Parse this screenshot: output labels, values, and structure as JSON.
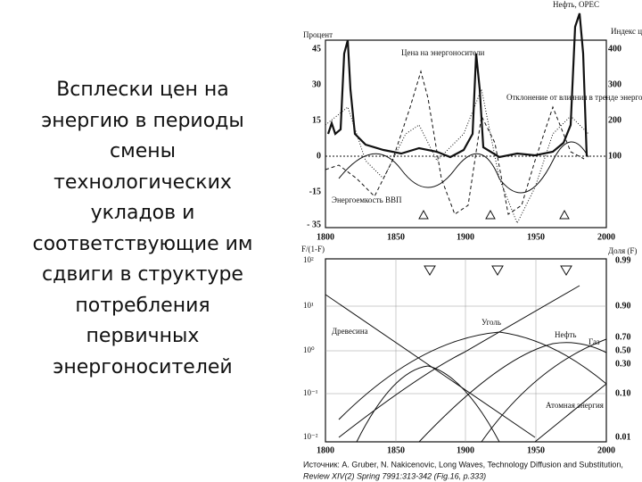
{
  "slide": {
    "text_lines": [
      "Всплески цен на",
      "энергию в периоды",
      "смены",
      "технологических",
      "укладов и",
      "соответствующие им",
      "сдвиги в структуре",
      "потребления",
      "первичных",
      "энергоносителей"
    ]
  },
  "figure": {
    "top_panel": {
      "header": "Нефть, ОРЕС",
      "left_axis_title": "Процент",
      "right_axis_title": "Индекс цен на энергоносители",
      "left_ticks": [
        "45",
        "30",
        "15",
        "0",
        "-15",
        "- 35"
      ],
      "right_ticks": [
        "400",
        "300",
        "200",
        "100"
      ],
      "x_ticks": [
        "1800",
        "1850",
        "1900",
        "1950",
        "2000"
      ],
      "annotations": [
        "Цена на энергоносители",
        "Отклонение от влияния в тренде энергопотребления",
        "Энергоемкость ВВП"
      ]
    },
    "bottom_panel": {
      "left_axis_title": "F/(1-F)",
      "right_axis_title": "Доля (F)",
      "left_ticks": [
        "10²",
        "10¹",
        "10⁰",
        "10⁻¹",
        "10⁻²"
      ],
      "right_ticks": [
        "0.99",
        "0.90",
        "0.70",
        "0.50",
        "0.30",
        "0.10",
        "0.01"
      ],
      "x_ticks": [
        "1800",
        "1850",
        "1900",
        "1950",
        "2000"
      ],
      "labels": [
        "Древесина",
        "Уголь",
        "Нефть",
        "Газ",
        "Атомная энергия"
      ]
    }
  },
  "source": [
    "Источник: A. Gruber, N. Nakicenovic, Long Waves, Technology Diffusion and Substitution,",
    "Review XIV(2) Spring 7991:313-342 (Fig.16, p.333)"
  ]
}
